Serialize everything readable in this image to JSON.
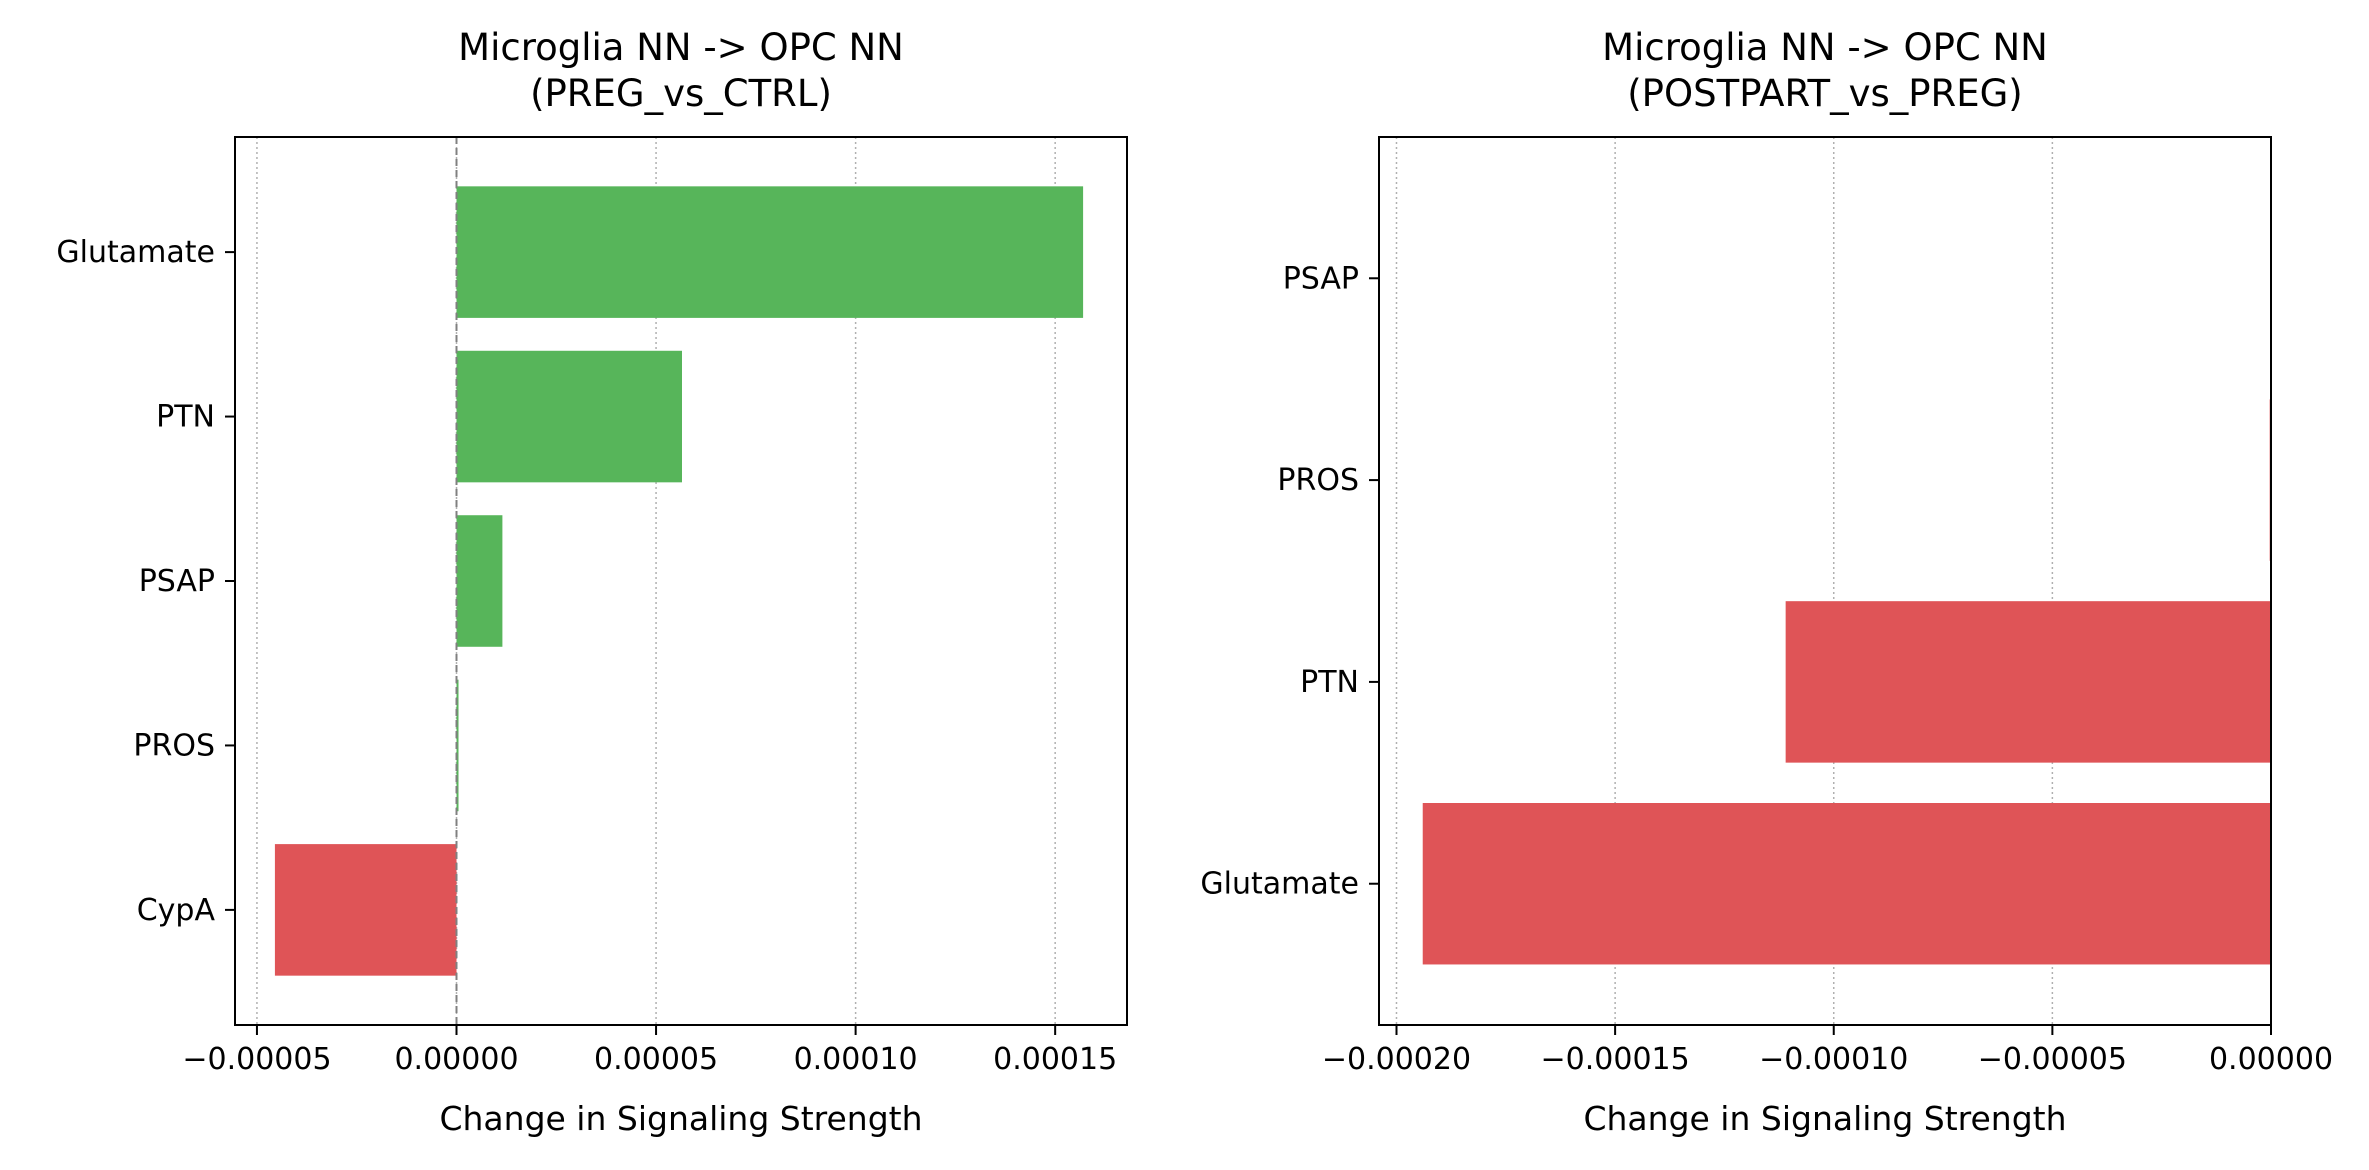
{
  "colors": {
    "positive": "#57b55a",
    "negative": "#df5457",
    "grid": "#b0b0b0",
    "zero_line": "#808080"
  },
  "chart_data": [
    {
      "type": "bar",
      "orientation": "horizontal",
      "title": "Microglia NN -> OPC NN\n(PREG_vs_CTRL)",
      "xlabel": "Change in Signaling Strength",
      "ylabel": "",
      "categories": [
        "Glutamate",
        "PTN",
        "PSAP",
        "PROS",
        "CypA"
      ],
      "values": [
        0.000157,
        5.65e-05,
        1.15e-05,
        5e-07,
        -4.55e-05
      ],
      "xlim": [
        -5.55e-05,
        0.000168
      ],
      "xticks": [
        -5e-05,
        0.0,
        5e-05,
        0.0001,
        0.00015
      ],
      "xtick_labels": [
        "−0.00005",
        "0.00000",
        "0.00005",
        "0.00010",
        "0.00015"
      ],
      "grid": "x-dotted",
      "zero_line": true
    },
    {
      "type": "bar",
      "orientation": "horizontal",
      "title": "Microglia NN -> OPC NN\n(POSTPART_vs_PREG)",
      "xlabel": "Change in Signaling Strength",
      "ylabel": "",
      "categories": [
        "PSAP",
        "PROS",
        "PTN",
        "Glutamate"
      ],
      "values": [
        0.0,
        -3e-07,
        -0.000111,
        -0.000194
      ],
      "xlim": [
        -0.000204,
        0.0
      ],
      "xticks": [
        -0.0002,
        -0.00015,
        -0.0001,
        -5e-05,
        0.0
      ],
      "xtick_labels": [
        "−0.00020",
        "−0.00015",
        "−0.00010",
        "−0.00005",
        "0.00000"
      ],
      "grid": "x-dotted",
      "zero_line": false
    }
  ]
}
